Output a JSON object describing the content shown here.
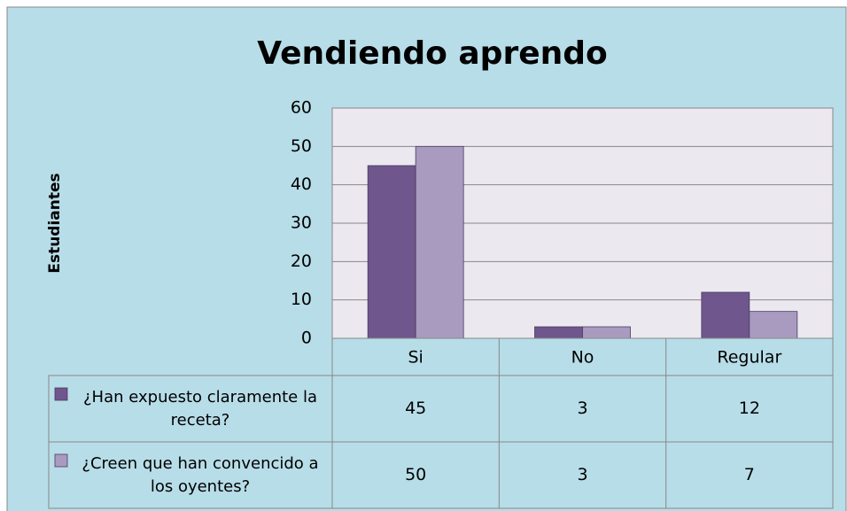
{
  "chart_data": {
    "type": "bar",
    "title": "Vendiendo aprendo",
    "y_label": "Estudiantes",
    "categories": [
      "Si",
      "No",
      "Regular"
    ],
    "series": [
      {
        "name": "¿Han expuesto claramente la receta?",
        "color": "#6f568c",
        "values": [
          45,
          3,
          12
        ]
      },
      {
        "name": "¿Creen que han convencido a los oyentes?",
        "color": "#a99bbf",
        "values": [
          50,
          3,
          7
        ]
      }
    ],
    "ylim": [
      0,
      60
    ],
    "yticks": [
      0,
      10,
      20,
      30,
      40,
      50,
      60
    ],
    "grid": true
  }
}
